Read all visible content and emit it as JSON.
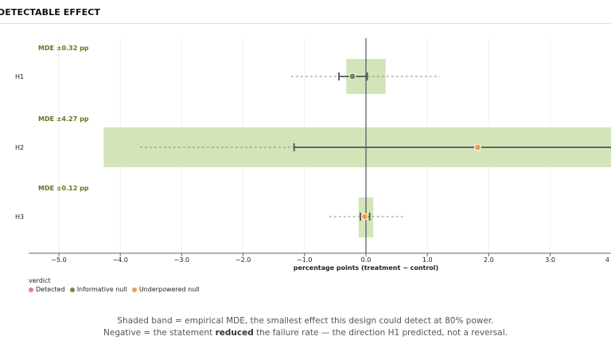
{
  "header": {
    "title": "MUM DETECTABLE EFFECT"
  },
  "colors": {
    "band": "#d3e4b8",
    "axis_zero": "#55506a",
    "mde_label": "#5a7a1e",
    "whisker": "#555555",
    "detected": "#d4858a",
    "informative_null": "#6e8a4f",
    "underpowered_null": "#e8a050"
  },
  "chart_data": {
    "type": "forest",
    "x_axis": {
      "label": "percentage points (treatment − control)",
      "range": [
        -5.5,
        4.1
      ],
      "ticks": [
        -5.0,
        -4.0,
        -3.0,
        -2.0,
        -1.0,
        0.0,
        1.0,
        2.0,
        3.0,
        4.0
      ],
      "tick_labels": [
        "−5.0",
        "−4.0",
        "−3.0",
        "−2.0",
        "−1.0",
        "0.0",
        "1.0",
        "2.0",
        "3.0",
        "4"
      ]
    },
    "grid": true,
    "rows": [
      {
        "label": "H1",
        "mde_text": "MDE ±0.32 pp",
        "mde": 0.32,
        "estimate": -0.22,
        "ci95": [
          -0.44,
          0.02
        ],
        "range": [
          -1.22,
          1.2
        ],
        "verdict": "Informative null"
      },
      {
        "label": "H2",
        "mde_text": "MDE ±4.27 pp",
        "mde": 4.27,
        "estimate": 1.82,
        "ci95": [
          -1.17,
          4.8
        ],
        "range": [
          -3.68,
          4.8
        ],
        "verdict": "Underpowered null"
      },
      {
        "label": "H3",
        "mde_text": "MDE ±0.12 pp",
        "mde": 0.12,
        "estimate": -0.02,
        "ci95": [
          -0.09,
          0.06
        ],
        "range": [
          -0.6,
          0.6
        ],
        "verdict": "Underpowered null"
      }
    ],
    "legend": {
      "title": "verdict",
      "placement": "bottom-left",
      "items": [
        {
          "label": "Detected",
          "color": "#d4858a"
        },
        {
          "label": "Informative null",
          "color": "#6e8a4f"
        },
        {
          "label": "Underpowered null",
          "color": "#e8a050"
        }
      ]
    }
  },
  "footnote": {
    "line1": "Shaded band = empirical MDE, the smallest effect this design could detect at 80% power.",
    "line2_pre": "Negative = the statement ",
    "line2_bold": "reduced",
    "line2_post": " the failure rate — the direction H1 predicted, not a reversal."
  }
}
